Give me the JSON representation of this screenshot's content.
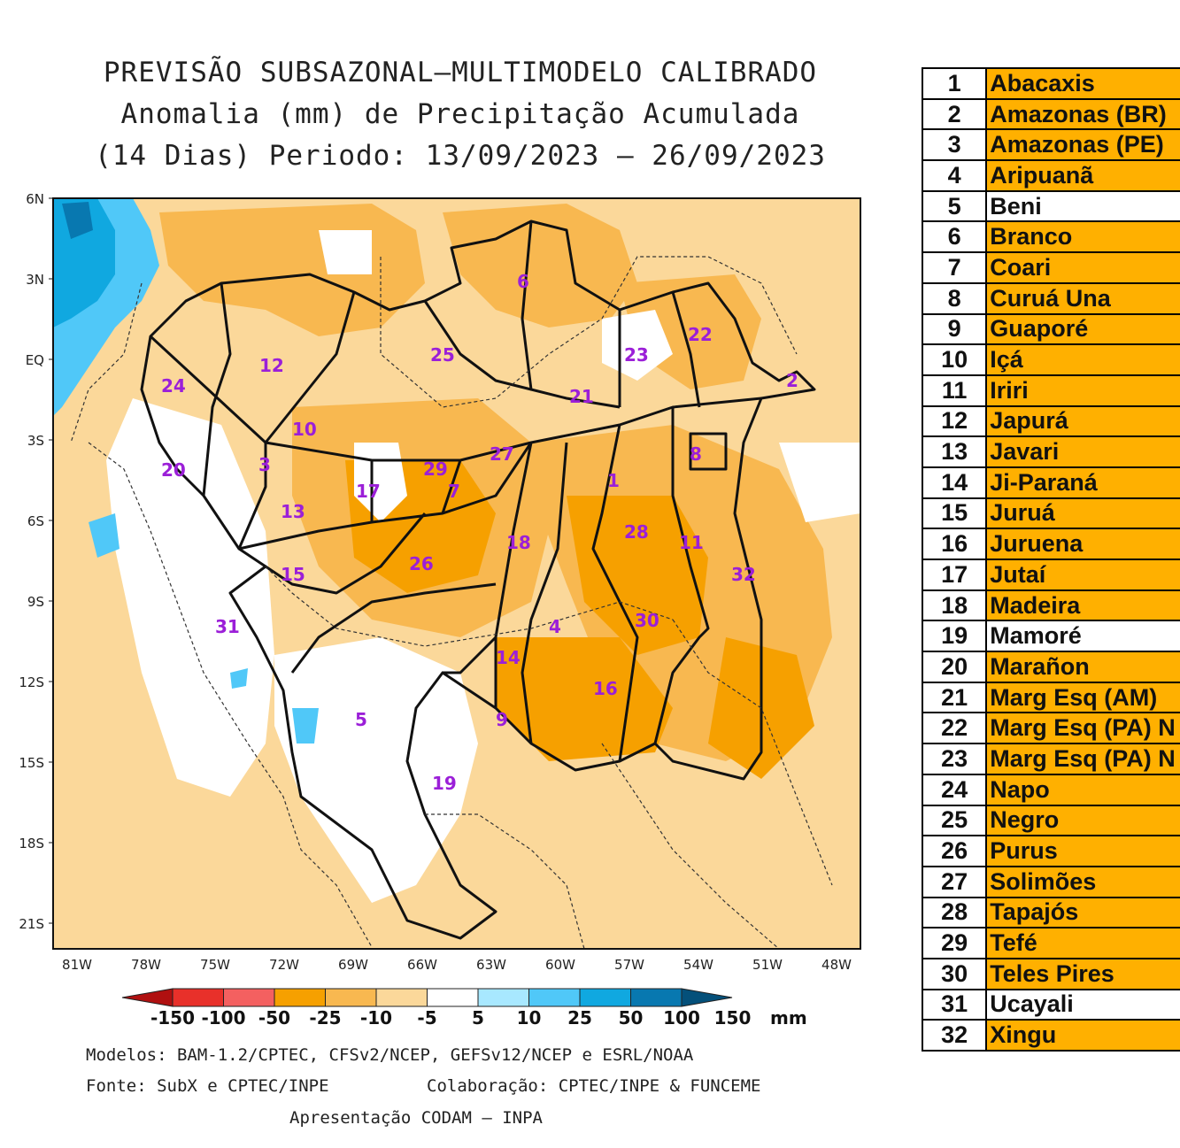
{
  "title": {
    "line1": "PREVISÃO SUBSAZONAL—MULTIMODELO CALIBRADO",
    "line2": "Anomalia (mm) de Precipitação Acumulada",
    "line3": "(14 Dias) Periodo: 13/09/2023 – 26/09/2023"
  },
  "map": {
    "lat_labels": [
      "6N",
      "3N",
      "EQ",
      "3S",
      "6S",
      "9S",
      "12S",
      "15S",
      "18S",
      "21S"
    ],
    "lon_labels": [
      "81W",
      "78W",
      "75W",
      "72W",
      "69W",
      "66W",
      "63W",
      "60W",
      "57W",
      "54W",
      "51W",
      "48W"
    ],
    "basin_labels": [
      "1",
      "2",
      "3",
      "4",
      "5",
      "6",
      "7",
      "8",
      "9",
      "10",
      "11",
      "12",
      "13",
      "14",
      "15",
      "16",
      "17",
      "18",
      "19",
      "20",
      "21",
      "22",
      "23",
      "24",
      "25",
      "26",
      "27",
      "28",
      "29",
      "30",
      "31",
      "32"
    ]
  },
  "colorbar": {
    "labels": [
      "-150",
      "-100",
      "-50",
      "-25",
      "-10",
      "-5",
      "5",
      "10",
      "25",
      "50",
      "100",
      "150"
    ],
    "unit": "mm",
    "colors": [
      "#b01010",
      "#e8302a",
      "#f46060",
      "#f6a000",
      "#f8b850",
      "#fbd89a",
      "#ffffff",
      "#a8e8ff",
      "#50c8f8",
      "#10a8e0",
      "#0878b0",
      "#04507a"
    ]
  },
  "footer": {
    "models": "Modelos: BAM-1.2/CPTEC, CFSv2/NCEP, GEFSv12/NCEP e ESRL/NOAA",
    "source": "Fonte: SubX e CPTEC/INPE",
    "collab": "Colaboração: CPTEC/INPE & FUNCEME",
    "presentation": "Apresentação CODAM – INPA"
  },
  "legend": [
    {
      "num": "1",
      "name": "Abacaxis",
      "color": "#ffb000"
    },
    {
      "num": "2",
      "name": "Amazonas (BR)",
      "color": "#ffb000"
    },
    {
      "num": "3",
      "name": "Amazonas (PE)",
      "color": "#ffb000"
    },
    {
      "num": "4",
      "name": "Aripuanã",
      "color": "#ffb000"
    },
    {
      "num": "5",
      "name": "Beni",
      "color": "#ffffff"
    },
    {
      "num": "6",
      "name": "Branco",
      "color": "#ffb000"
    },
    {
      "num": "7",
      "name": "Coari",
      "color": "#ffb000"
    },
    {
      "num": "8",
      "name": "Curuá Una",
      "color": "#ffb000"
    },
    {
      "num": "9",
      "name": "Guaporé",
      "color": "#ffb000"
    },
    {
      "num": "10",
      "name": "Içá",
      "color": "#ffb000"
    },
    {
      "num": "11",
      "name": "Iriri",
      "color": "#ffb000"
    },
    {
      "num": "12",
      "name": "Japurá",
      "color": "#ffb000"
    },
    {
      "num": "13",
      "name": "Javari",
      "color": "#ffb000"
    },
    {
      "num": "14",
      "name": "Ji-Paraná",
      "color": "#ffb000"
    },
    {
      "num": "15",
      "name": "Juruá",
      "color": "#ffb000"
    },
    {
      "num": "16",
      "name": "Juruena",
      "color": "#ffb000"
    },
    {
      "num": "17",
      "name": "Jutaí",
      "color": "#ffb000"
    },
    {
      "num": "18",
      "name": "Madeira",
      "color": "#ffb000"
    },
    {
      "num": "19",
      "name": "Mamoré",
      "color": "#ffffff"
    },
    {
      "num": "20",
      "name": "Marañon",
      "color": "#ffb000"
    },
    {
      "num": "21",
      "name": "Marg Esq (AM)",
      "color": "#ffb000"
    },
    {
      "num": "22",
      "name": "Marg Esq (PA) N",
      "color": "#ffb000"
    },
    {
      "num": "23",
      "name": "Marg Esq (PA) N",
      "color": "#ffb000"
    },
    {
      "num": "24",
      "name": "Napo",
      "color": "#ffb000"
    },
    {
      "num": "25",
      "name": "Negro",
      "color": "#ffb000"
    },
    {
      "num": "26",
      "name": "Purus",
      "color": "#ffb000"
    },
    {
      "num": "27",
      "name": "Solimões",
      "color": "#ffb000"
    },
    {
      "num": "28",
      "name": "Tapajós",
      "color": "#ffb000"
    },
    {
      "num": "29",
      "name": "Tefé",
      "color": "#ffb000"
    },
    {
      "num": "30",
      "name": "Teles Pires",
      "color": "#ffb000"
    },
    {
      "num": "31",
      "name": "Ucayali",
      "color": "#ffffff"
    },
    {
      "num": "32",
      "name": "Xingu",
      "color": "#ffb000"
    }
  ]
}
